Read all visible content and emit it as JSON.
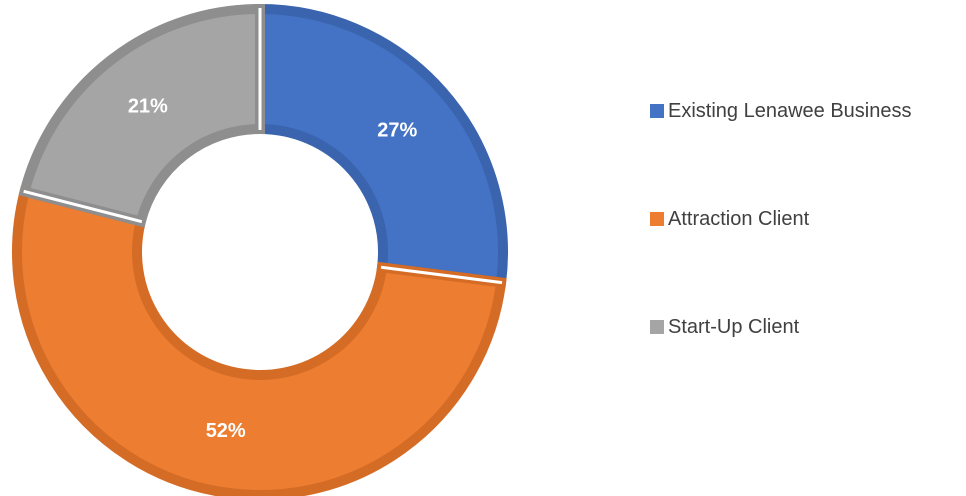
{
  "chart_data": {
    "type": "pie",
    "variant": "donut",
    "title": "",
    "slices": [
      {
        "name": "Existing Lenawee Business",
        "value": 27,
        "label": "27%",
        "color": "#4472C4",
        "edge_color": "#3A64AE"
      },
      {
        "name": "Attraction Client",
        "value": 52,
        "label": "52%",
        "color": "#ED7D31",
        "edge_color": "#D56C26"
      },
      {
        "name": "Start-Up Client",
        "value": 21,
        "label": "21%",
        "color": "#A5A5A5",
        "edge_color": "#8E8E8E"
      }
    ],
    "start_angle_deg": 0,
    "direction": "clockwise",
    "legend_position": "right",
    "label_color": "#FFFFFF"
  }
}
